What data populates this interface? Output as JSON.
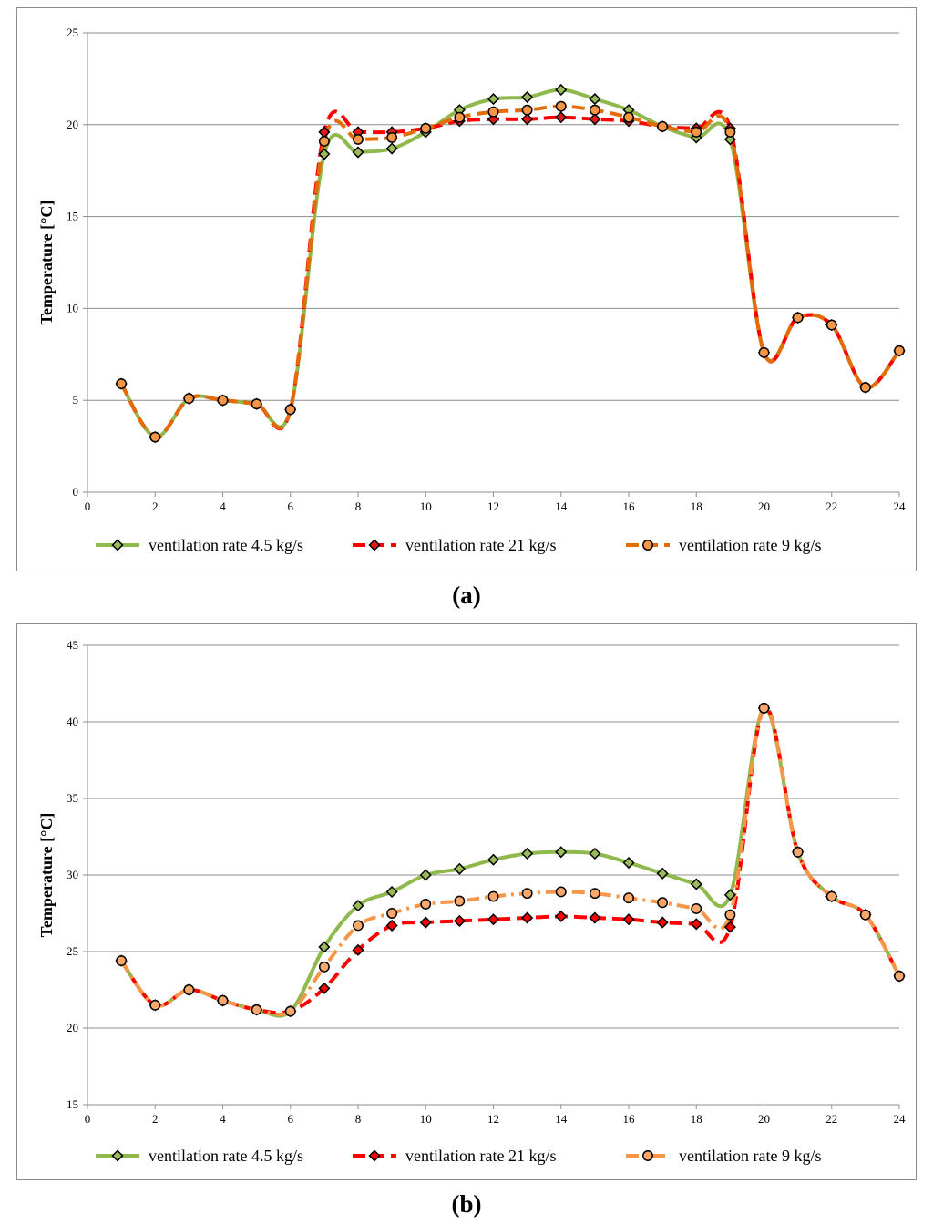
{
  "chart_data": [
    {
      "id": "a",
      "type": "line",
      "caption": "(a)",
      "xlabel": "",
      "ylabel": "Temperature [°C]",
      "xlim": [
        0,
        24
      ],
      "ylim": [
        0,
        25
      ],
      "xticks": [
        "0",
        "2",
        "4",
        "6",
        "8",
        "10",
        "12",
        "14",
        "16",
        "18",
        "20",
        "22",
        "24"
      ],
      "yticks": [
        "0",
        "5",
        "10",
        "15",
        "20",
        "25"
      ],
      "grid": true,
      "legend_position": "bottom",
      "series": [
        {
          "name": "ventilation rate 4.5 kg/s",
          "color": "#8fb84d",
          "dash": "solid",
          "marker": "diamond",
          "marker_fill": "#9bbb59",
          "x": [
            1,
            2,
            3,
            4,
            5,
            6,
            7,
            8,
            9,
            10,
            11,
            12,
            13,
            14,
            15,
            16,
            17,
            18,
            19,
            20,
            21,
            22,
            23,
            24
          ],
          "y": [
            5.9,
            3.0,
            5.1,
            5.0,
            4.8,
            4.5,
            18.4,
            18.5,
            18.7,
            19.6,
            20.8,
            21.4,
            21.5,
            21.9,
            21.4,
            20.8,
            19.9,
            19.3,
            19.2,
            7.6,
            9.5,
            9.1,
            5.7,
            7.7
          ]
        },
        {
          "name": "ventilation rate 21 kg/s",
          "color": "#ff0000",
          "dash": "dashed",
          "marker": "diamond",
          "marker_fill": "#e31a1c",
          "x": [
            1,
            2,
            3,
            4,
            5,
            6,
            7,
            8,
            9,
            10,
            11,
            12,
            13,
            14,
            15,
            16,
            17,
            18,
            19,
            20,
            21,
            22,
            23,
            24
          ],
          "y": [
            5.9,
            3.0,
            5.1,
            5.0,
            4.8,
            4.5,
            19.6,
            19.6,
            19.6,
            19.8,
            20.2,
            20.3,
            20.3,
            20.4,
            20.3,
            20.2,
            19.9,
            19.8,
            19.8,
            7.6,
            9.5,
            9.1,
            5.7,
            7.7
          ]
        },
        {
          "name": "ventilation rate 9 kg/s",
          "color": "#e36c09",
          "dash": "dashed",
          "marker": "circle",
          "marker_fill": "#f79646",
          "x": [
            1,
            2,
            3,
            4,
            5,
            6,
            7,
            8,
            9,
            10,
            11,
            12,
            13,
            14,
            15,
            16,
            17,
            18,
            19,
            20,
            21,
            22,
            23,
            24
          ],
          "y": [
            5.9,
            3.0,
            5.1,
            5.0,
            4.8,
            4.5,
            19.1,
            19.2,
            19.3,
            19.8,
            20.4,
            20.7,
            20.8,
            21.0,
            20.8,
            20.4,
            19.9,
            19.6,
            19.6,
            7.6,
            9.5,
            9.1,
            5.7,
            7.7
          ]
        }
      ]
    },
    {
      "id": "b",
      "type": "line",
      "caption": "(b)",
      "xlabel": "",
      "ylabel": "Temperature [°C]",
      "xlim": [
        0,
        24
      ],
      "ylim": [
        15,
        45
      ],
      "xticks": [
        "0",
        "2",
        "4",
        "6",
        "8",
        "10",
        "12",
        "14",
        "16",
        "18",
        "20",
        "22",
        "24"
      ],
      "yticks": [
        "15",
        "20",
        "25",
        "30",
        "35",
        "40",
        "45"
      ],
      "grid": true,
      "legend_position": "bottom",
      "series": [
        {
          "name": "ventilation rate 4.5 kg/s",
          "color": "#8fb84d",
          "dash": "solid",
          "marker": "diamond",
          "marker_fill": "#9bbb59",
          "x": [
            1,
            2,
            3,
            4,
            5,
            6,
            7,
            8,
            9,
            10,
            11,
            12,
            13,
            14,
            15,
            16,
            17,
            18,
            19,
            20,
            21,
            22,
            23,
            24
          ],
          "y": [
            24.4,
            21.5,
            22.5,
            21.8,
            21.2,
            21.1,
            25.3,
            28.0,
            28.9,
            30.0,
            30.4,
            31.0,
            31.4,
            31.5,
            31.4,
            30.8,
            30.1,
            29.4,
            28.7,
            40.9,
            31.5,
            28.6,
            27.4,
            23.4
          ]
        },
        {
          "name": "ventilation rate 21 kg/s",
          "color": "#ff0000",
          "dash": "dashed",
          "marker": "diamond",
          "marker_fill": "#ff0000",
          "x": [
            1,
            2,
            3,
            4,
            5,
            6,
            7,
            8,
            9,
            10,
            11,
            12,
            13,
            14,
            15,
            16,
            17,
            18,
            19,
            20,
            21,
            22,
            23,
            24
          ],
          "y": [
            24.4,
            21.5,
            22.5,
            21.8,
            21.2,
            21.1,
            22.6,
            25.1,
            26.7,
            26.9,
            27.0,
            27.1,
            27.2,
            27.3,
            27.2,
            27.1,
            26.9,
            26.8,
            26.6,
            40.9,
            31.5,
            28.6,
            27.4,
            23.4
          ]
        },
        {
          "name": "ventilation rate 9 kg/s",
          "color": "#f79646",
          "dash": "dashdot",
          "marker": "circle",
          "marker_fill": "#f9a76b",
          "x": [
            1,
            2,
            3,
            4,
            5,
            6,
            7,
            8,
            9,
            10,
            11,
            12,
            13,
            14,
            15,
            16,
            17,
            18,
            19,
            20,
            21,
            22,
            23,
            24
          ],
          "y": [
            24.4,
            21.5,
            22.5,
            21.8,
            21.2,
            21.1,
            24.0,
            26.7,
            27.5,
            28.1,
            28.3,
            28.6,
            28.8,
            28.9,
            28.8,
            28.5,
            28.2,
            27.8,
            27.4,
            40.9,
            31.5,
            28.6,
            27.4,
            23.4
          ]
        }
      ]
    }
  ]
}
